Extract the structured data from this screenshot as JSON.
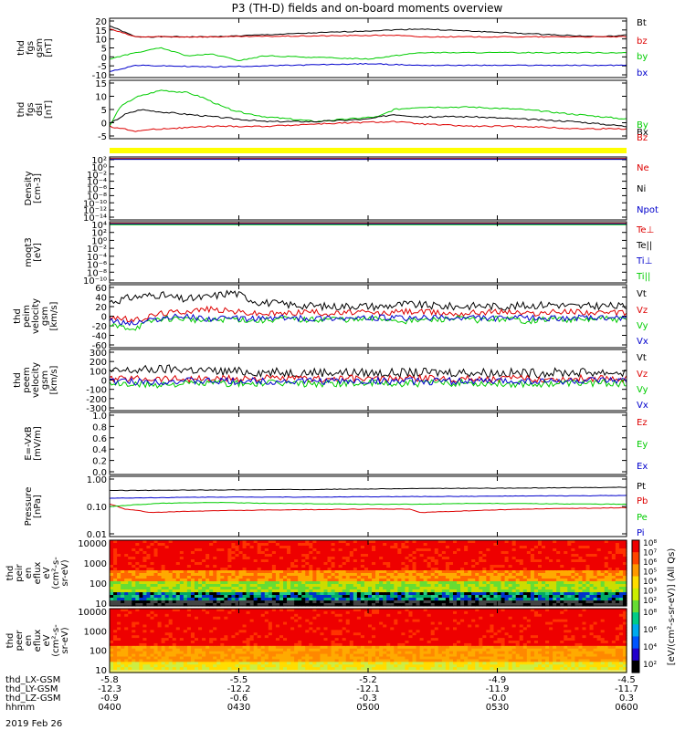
{
  "chart_data": {
    "type": "line",
    "title": "P3 (TH-D) fields and on-board moments overview",
    "date_label": "2019 Feb 26",
    "time_axis": {
      "rows": [
        {
          "label": "thd_LX-GSM",
          "values": [
            "-5.8",
            "-5.5",
            "-5.2",
            "-4.9",
            "-4.5"
          ]
        },
        {
          "label": "thd_LY-GSM",
          "values": [
            "-12.3",
            "-12.2",
            "-12.1",
            "-11.9",
            "-11.7"
          ]
        },
        {
          "label": "thd_LZ-GSM",
          "values": [
            "-0.9",
            "-0.6",
            "-0.3",
            "-0.0",
            "0.3"
          ]
        },
        {
          "label": "hhmm",
          "values": [
            "0400",
            "0430",
            "0500",
            "0530",
            "0600"
          ]
        }
      ]
    },
    "panels": [
      {
        "id": "fgs",
        "ylabel": [
          "thd",
          "fgs",
          "gsm",
          "[nT]"
        ],
        "scale": "linear",
        "ylim": [
          -12,
          22
        ],
        "ticks": [
          "20",
          "15",
          "10",
          "5",
          "0",
          "-5",
          "-10"
        ],
        "series": [
          {
            "name": "Bt",
            "color": "#000000",
            "x": [
              0,
              5,
              20,
              60,
              95,
              100
            ],
            "values": [
              19,
              12,
              12,
              17,
              12,
              13
            ]
          },
          {
            "name": "bz",
            "color": "#dd0000",
            "x": [
              0,
              5,
              20,
              55,
              60,
              95,
              100
            ],
            "values": [
              17,
              12,
              12,
              13,
              12,
              12,
              12
            ]
          },
          {
            "name": "by",
            "color": "#00cc00",
            "x": [
              0,
              5,
              10,
              15,
              20,
              25,
              30,
              40,
              50,
              60,
              100
            ],
            "values": [
              -2,
              2,
              5,
              0,
              1,
              -3,
              0,
              -1,
              -2,
              2,
              2
            ]
          },
          {
            "name": "bx",
            "color": "#0000cc",
            "x": [
              0,
              5,
              20,
              50,
              60,
              100
            ],
            "values": [
              -10,
              -6,
              -7,
              -5,
              -6,
              -6
            ]
          }
        ]
      },
      {
        "id": "fgs_dsl",
        "ylabel": [
          "thd",
          "fgs",
          "dsl",
          "[nT]"
        ],
        "scale": "linear",
        "ylim": [
          -6,
          16
        ],
        "ticks": [
          "15",
          "10",
          "5",
          "0",
          "-5"
        ],
        "series": [
          {
            "name": "By",
            "color": "#00cc00",
            "x": [
              0,
              2,
              5,
              10,
              15,
              18,
              22,
              25,
              30,
              40,
              52,
              55,
              60,
              70,
              80,
              90,
              100
            ],
            "values": [
              -2,
              6,
              10,
              13,
              12,
              10,
              6,
              4,
              2,
              0,
              2,
              5,
              6,
              6,
              5,
              3,
              1
            ]
          },
          {
            "name": "Bx",
            "color": "#000000",
            "x": [
              0,
              3,
              6,
              10,
              15,
              20,
              25,
              30,
              40,
              50,
              55,
              60,
              70,
              80,
              90,
              100
            ],
            "values": [
              -1,
              3,
              5,
              4,
              3,
              2,
              1,
              0,
              0,
              1,
              3,
              2,
              2,
              1,
              0,
              -2
            ]
          },
          {
            "name": "Bz",
            "color": "#dd0000",
            "x": [
              0,
              5,
              10,
              20,
              30,
              40,
              55,
              60,
              70,
              80,
              90,
              100
            ],
            "values": [
              -2,
              -4,
              -3,
              -2,
              -2,
              -1,
              0,
              -1,
              -2,
              -2,
              -3,
              -3
            ]
          }
        ]
      },
      {
        "id": "density",
        "ylabel": [
          "Density",
          "[cm-3]"
        ],
        "scale": "log",
        "ticks": [
          "10²",
          "10⁰",
          "10⁻²",
          "10⁻⁴",
          "10⁻⁶",
          "10⁻⁸",
          "10⁻¹⁰",
          "10⁻¹²",
          "10⁻¹⁴"
        ],
        "series": [
          {
            "name": "Ne",
            "color": "#dd0000"
          },
          {
            "name": "Ni",
            "color": "#000000"
          },
          {
            "name": "Npot",
            "color": "#0000cc"
          }
        ]
      },
      {
        "id": "temperature",
        "ylabel": [
          "moqt3",
          "[eV]"
        ],
        "scale": "log",
        "ticks": [
          "10⁴",
          "10²",
          "10⁰",
          "10⁻²",
          "10⁻⁴",
          "10⁻⁶",
          "10⁻⁸",
          "10⁻¹⁰"
        ],
        "series": [
          {
            "name": "Te⊥",
            "color": "#dd0000"
          },
          {
            "name": "Te||",
            "color": "#000000"
          },
          {
            "name": "Ti⊥",
            "color": "#0000cc"
          },
          {
            "name": "Ti||",
            "color": "#00cc00"
          }
        ]
      },
      {
        "id": "peim",
        "ylabel": [
          "thd",
          "peim",
          "velocity",
          "gsm",
          "[km/s]"
        ],
        "scale": "linear",
        "ylim": [
          -60,
          60
        ],
        "ticks": [
          "60",
          "40",
          "20",
          "0",
          "-20",
          "-40",
          "-60"
        ],
        "series": [
          {
            "name": "Vt",
            "color": "#000000",
            "values": [
              30,
              40,
              45,
              35,
              40,
              50,
              30,
              25,
              22,
              20,
              22,
              20,
              25,
              22,
              20,
              22,
              20,
              22,
              25,
              20,
              22,
              20
            ]
          },
          {
            "name": "Vz",
            "color": "#dd0000",
            "values": [
              0,
              -10,
              5,
              10,
              15,
              10,
              5,
              5,
              10,
              5,
              8,
              5,
              10,
              8,
              5,
              8,
              10,
              5,
              8,
              10,
              5,
              8
            ]
          },
          {
            "name": "Vy",
            "color": "#00cc00",
            "values": [
              -20,
              -25,
              -5,
              -5,
              -10,
              -5,
              -10,
              -5,
              -8,
              -5,
              -8,
              -5,
              -10,
              -8,
              -5,
              -8,
              -5,
              -10,
              -5,
              -8,
              -5,
              -8
            ]
          },
          {
            "name": "Vx",
            "color": "#0000cc",
            "values": [
              -10,
              -15,
              -5,
              0,
              -5,
              -5,
              -5,
              -3,
              -5,
              -3,
              -5,
              -3,
              -5,
              -3,
              -5,
              -3,
              -5,
              -3,
              -5,
              -3,
              -5,
              -3
            ]
          }
        ]
      },
      {
        "id": "peem",
        "ylabel": [
          "thd",
          "peem",
          "velocity",
          "gsm",
          "[km/s]"
        ],
        "scale": "linear",
        "ylim": [
          -300,
          300
        ],
        "ticks": [
          "300",
          "200",
          "100",
          "0",
          "-100",
          "-200",
          "-300"
        ],
        "series": [
          {
            "name": "Vt",
            "color": "#000000",
            "values": [
              90,
              110,
              120,
              95,
              90,
              80,
              85,
              80,
              75,
              80,
              85,
              80,
              75,
              80,
              85,
              80
            ]
          },
          {
            "name": "Vz",
            "color": "#dd0000",
            "values": [
              10,
              20,
              15,
              10,
              20,
              15,
              10,
              15,
              10,
              20,
              15,
              10,
              15,
              10,
              20,
              15
            ]
          },
          {
            "name": "Vy",
            "color": "#00cc00",
            "values": [
              -40,
              -50,
              -40,
              -35,
              -40,
              -35,
              -40,
              -35,
              -40,
              -35,
              -30,
              -35,
              -40,
              -35,
              -30,
              -35
            ]
          },
          {
            "name": "Vx",
            "color": "#0000cc",
            "values": [
              -10,
              -20,
              -10,
              -15,
              -10,
              -15,
              -10,
              -15,
              -10,
              -15,
              -10,
              -15,
              -10,
              -15,
              -10,
              -15
            ]
          }
        ]
      },
      {
        "id": "efield",
        "ylabel": [
          "E=-VxB",
          "[mV/m]"
        ],
        "scale": "linear",
        "ylim": [
          0,
          1
        ],
        "ticks": [
          "1.0",
          "0.8",
          "0.6",
          "0.4",
          "0.2",
          "0.0"
        ],
        "series": [
          {
            "name": "Ez",
            "color": "#dd0000"
          },
          {
            "name": "Ey",
            "color": "#00cc00"
          },
          {
            "name": "Ex",
            "color": "#0000cc"
          }
        ]
      },
      {
        "id": "pressure",
        "ylabel": [
          "Pressure",
          "[nPa]"
        ],
        "scale": "log",
        "ylim": [
          0.01,
          1.0
        ],
        "ticks": [
          "1.00",
          "0.10",
          "0.01"
        ],
        "series": [
          {
            "name": "Pt",
            "color": "#000000",
            "x": [
              0,
              20,
              40,
              60,
              80,
              100
            ],
            "values": [
              0.38,
              0.4,
              0.42,
              0.45,
              0.47,
              0.5
            ]
          },
          {
            "name": "Pb",
            "color": "#dd0000",
            "x": [
              0,
              3,
              8,
              20,
              50,
              58,
              60,
              70,
              80,
              100
            ],
            "values": [
              0.12,
              0.08,
              0.06,
              0.07,
              0.08,
              0.08,
              0.06,
              0.07,
              0.08,
              0.09
            ]
          },
          {
            "name": "Pe",
            "color": "#00cc00",
            "x": [
              0,
              10,
              20,
              30,
              50,
              60,
              70,
              100
            ],
            "values": [
              0.1,
              0.13,
              0.14,
              0.13,
              0.12,
              0.12,
              0.13,
              0.12
            ]
          },
          {
            "name": "Pi",
            "color": "#0000cc",
            "x": [
              0,
              20,
              40,
              60,
              80,
              100
            ],
            "values": [
              0.2,
              0.22,
              0.22,
              0.23,
              0.24,
              0.25
            ]
          }
        ]
      },
      {
        "id": "peir",
        "type": "heatmap",
        "ylabel": [
          "thd",
          "peir",
          "en",
          "eflux",
          "eV",
          "(cm²-s-",
          "sr-eV)"
        ],
        "scale": "log",
        "ticks": [
          "10000",
          "1000",
          "100",
          "10"
        ]
      },
      {
        "id": "peer",
        "type": "heatmap",
        "ylabel": [
          "thd",
          "peer",
          "en",
          "eflux",
          "eV",
          "(cm²-s-",
          "sr-eV)"
        ],
        "scale": "log",
        "ticks": [
          "10000",
          "1000",
          "100",
          "10"
        ]
      }
    ],
    "colorbar": {
      "upper_ticks": [
        "10⁸",
        "10⁷",
        "10⁶",
        "10⁵",
        "10⁴",
        "10³",
        "10²"
      ],
      "lower_ticks": [
        "10⁸",
        "10⁶",
        "10⁴",
        "10²"
      ],
      "label": "[eV/(cm²-s-sr-eV)] (All Qs)"
    },
    "status_bar_color": "#ffff00"
  }
}
